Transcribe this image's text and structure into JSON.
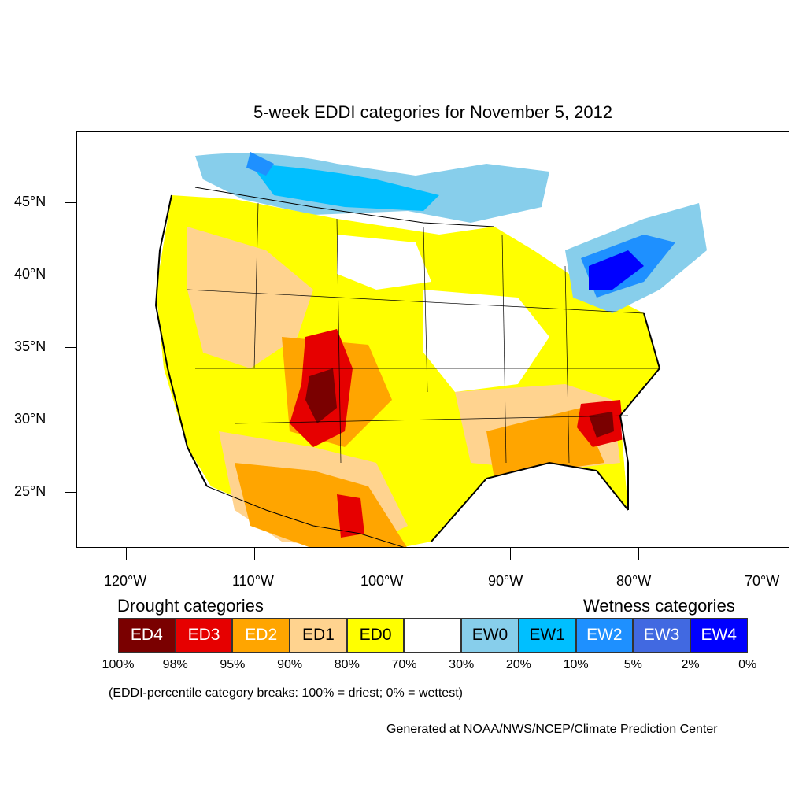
{
  "title": "5-week EDDI categories for November 5, 2012",
  "latitude_labels": [
    "45°N",
    "40°N",
    "35°N",
    "30°N",
    "25°N"
  ],
  "longitude_labels": [
    "120°W",
    "110°W",
    "100°W",
    "90°W",
    "80°W",
    "70°W"
  ],
  "legend": {
    "drought_heading": "Drought categories",
    "wetness_heading": "Wetness categories",
    "categories": [
      {
        "label": "ED4",
        "color": "#7a0000",
        "text_color": "#ffffff"
      },
      {
        "label": "ED3",
        "color": "#e60000",
        "text_color": "#ffffff"
      },
      {
        "label": "ED2",
        "color": "#ffa500",
        "text_color": "#ffffff"
      },
      {
        "label": "ED1",
        "color": "#ffd38f",
        "text_color": "#000000"
      },
      {
        "label": "ED0",
        "color": "#ffff00",
        "text_color": "#000000"
      },
      {
        "label": "",
        "color": "#ffffff",
        "text_color": "#000000"
      },
      {
        "label": "EW0",
        "color": "#87ceeb",
        "text_color": "#000000"
      },
      {
        "label": "EW1",
        "color": "#00bfff",
        "text_color": "#000000"
      },
      {
        "label": "EW2",
        "color": "#1e90ff",
        "text_color": "#ffffff"
      },
      {
        "label": "EW3",
        "color": "#4169e1",
        "text_color": "#ffffff"
      },
      {
        "label": "EW4",
        "color": "#0000ff",
        "text_color": "#ffffff"
      }
    ],
    "percentiles": [
      "100%",
      "98%",
      "95%",
      "90%",
      "80%",
      "70%",
      "30%",
      "20%",
      "10%",
      "5%",
      "2%",
      "0%"
    ]
  },
  "note": "(EDDI-percentile category breaks: 100% = driest; 0% = wettest)",
  "credit": "Generated at NOAA/NWS/NCEP/Climate Prediction Center"
}
